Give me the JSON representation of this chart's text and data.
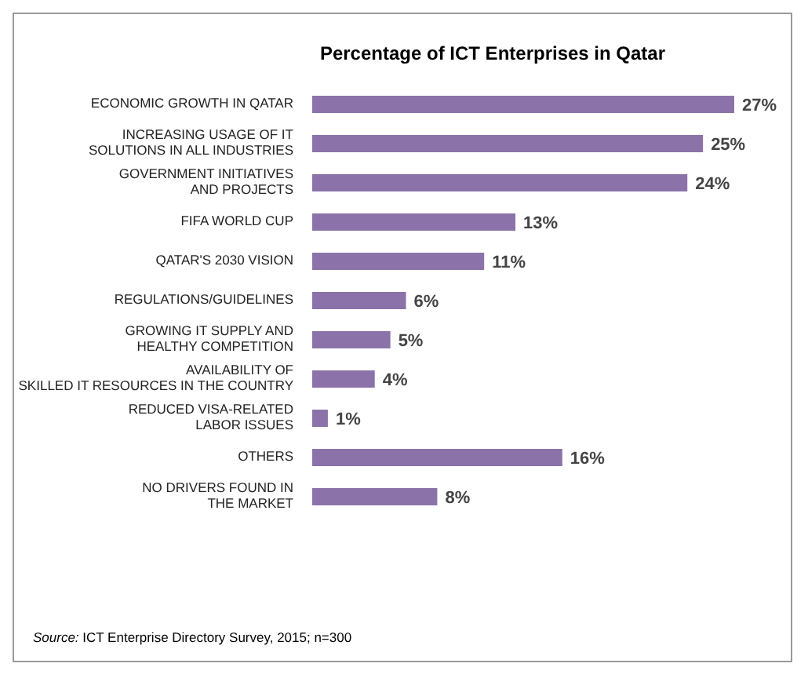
{
  "chart_data": {
    "type": "bar",
    "orientation": "horizontal",
    "title": "Percentage of ICT Enterprises in Qatar",
    "categories": [
      "ECONOMIC GROWTH IN QATAR",
      "INCREASING USAGE OF IT SOLUTIONS IN ALL INDUSTRIES",
      "GOVERNMENT INITIATIVES AND PROJECTS",
      "FIFA WORLD CUP",
      "QATAR'S 2030 VISION",
      "REGULATIONS/GUIDELINES",
      "GROWING IT SUPPLY AND HEALTHY COMPETITION",
      "AVAILABILITY OF SKILLED IT RESOURCES IN THE COUNTRY",
      "REDUCED VISA-RELATED LABOR ISSUES",
      "OTHERS",
      "NO DRIVERS FOUND IN THE MARKET"
    ],
    "values": [
      27,
      25,
      24,
      13,
      11,
      6,
      5,
      4,
      1,
      16,
      8
    ],
    "value_labels": [
      "27%",
      "25%",
      "24%",
      "13%",
      "11%",
      "6%",
      "5%",
      "4%",
      "1%",
      "16%",
      "8%"
    ],
    "color": "#8b73a9",
    "annotations": [
      "Source: ICT Enterprise Directory Survey, 2015; n=300"
    ]
  }
}
